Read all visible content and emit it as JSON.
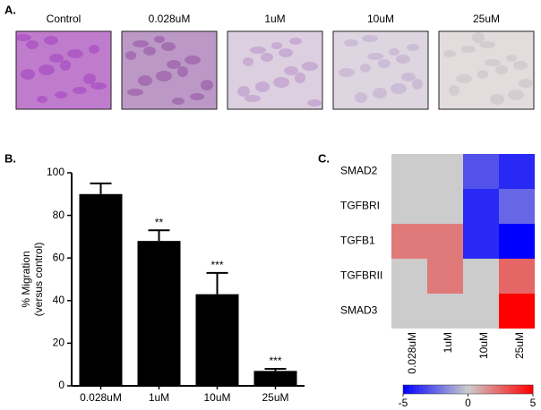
{
  "panel_a": {
    "label": "A.",
    "images": [
      "Control",
      "0.028uM",
      "1uM",
      "10uM",
      "25uM"
    ]
  },
  "chart_data": [
    {
      "type": "bar",
      "panel": "B.",
      "ylabel": [
        "% Migration",
        "(versus control)"
      ],
      "categories": [
        "0.028uM",
        "1uM",
        "10uM",
        "25uM"
      ],
      "values": [
        90,
        68,
        43,
        7
      ],
      "errors": [
        5,
        5,
        10,
        1
      ],
      "annotations": [
        null,
        "**",
        "***",
        "***"
      ],
      "color": "#000000",
      "ylim": [
        0,
        100
      ],
      "yticks": [
        0,
        20,
        40,
        60,
        80,
        100
      ]
    },
    {
      "type": "heatmap",
      "panel": "C.",
      "rows": [
        "SMAD2",
        "TGFBRI",
        "TGFB1",
        "TGFBRII",
        "SMAD3"
      ],
      "columns": [
        "0.028uM",
        "1uM",
        "10uM",
        "25uM"
      ],
      "values": [
        [
          0,
          0,
          -3,
          -4
        ],
        [
          0,
          0,
          -4,
          -2.5
        ],
        [
          2,
          2,
          -4,
          -5
        ],
        [
          0,
          2,
          0,
          2.5
        ],
        [
          0,
          0,
          0,
          5
        ]
      ],
      "clim": [
        -5,
        5
      ],
      "cticks": [
        -5,
        0,
        5
      ],
      "colors": [
        "#0000ff",
        "#cccccc",
        "#ff0000"
      ]
    }
  ]
}
